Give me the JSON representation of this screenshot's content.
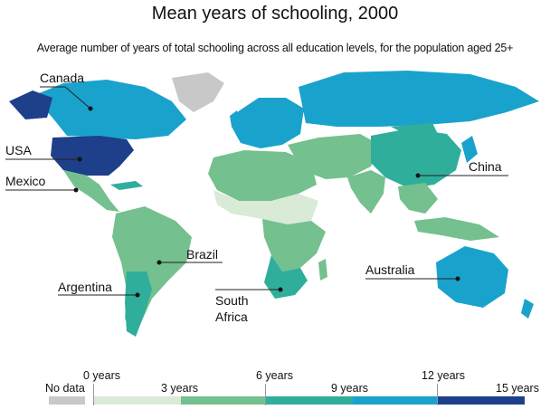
{
  "title": "Mean years of schooling, 2000",
  "subtitle": "Average number of years of total schooling across all education levels, for the population aged 25+",
  "country_labels": {
    "canada": "Canada",
    "usa": "USA",
    "mexico": "Mexico",
    "brazil": "Brazil",
    "argentina": "Argentina",
    "south_africa_line1": "South",
    "south_africa_line2": "Africa",
    "china": "China",
    "australia": "Australia"
  },
  "legend": {
    "no_data": "No data",
    "ticks": [
      "0 years",
      "3 years",
      "6 years",
      "9 years",
      "12 years",
      "15 years"
    ],
    "colors": {
      "no_data": "#c8c8c8",
      "c0_3": "#d9ead6",
      "c3_6": "#74c08e",
      "c6_9": "#2fae9c",
      "c9_12": "#19a3cc",
      "c12_15": "#1e3f8a"
    }
  }
}
